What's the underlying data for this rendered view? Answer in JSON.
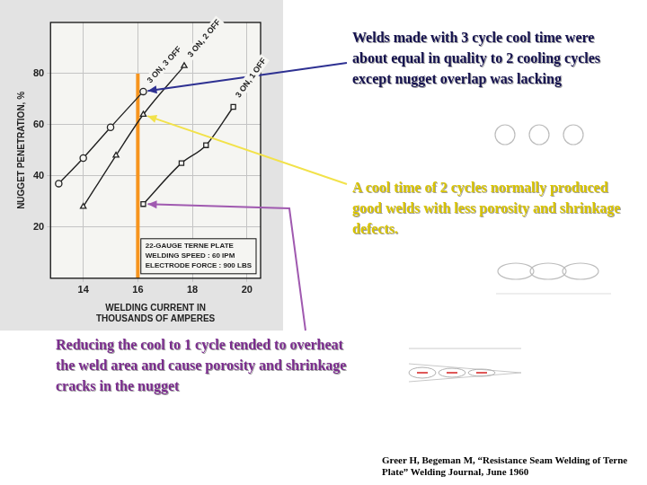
{
  "chart_data": {
    "type": "line",
    "xlabel": [
      "WELDING CURRENT IN",
      "THOUSANDS OF AMPERES"
    ],
    "ylabel": "NUGGET PENETRATION, %",
    "xlim": [
      12.8,
      20.5
    ],
    "xticks": [
      14,
      16,
      18,
      20
    ],
    "ylim": [
      0,
      100
    ],
    "yticks": [
      20,
      40,
      60,
      80
    ],
    "grid": true,
    "series": [
      {
        "name": "3 ON, 3 OFF",
        "color": "#222222",
        "marker": "circle",
        "x": [
          13.1,
          14,
          15,
          16.2
        ],
        "values": [
          37,
          47,
          59,
          73
        ]
      },
      {
        "name": "3 ON, 2 OFF",
        "color": "#222222",
        "marker": "triangle",
        "x": [
          14,
          15.2,
          16.2,
          17.7
        ],
        "values": [
          28,
          48,
          64,
          83
        ]
      },
      {
        "name": "3 ON, 1 OFF",
        "color": "#222222",
        "marker": "square",
        "x": [
          16.2,
          17.6,
          18.5,
          19.5
        ],
        "values": [
          29,
          45,
          52,
          67
        ]
      }
    ],
    "info_box": [
      "22-GAUGE TERNE PLATE",
      "WELDING SPEED : 60 IPM",
      "ELECTRODE FORCE : 900 LBS"
    ],
    "vertical_line": {
      "x": 16,
      "y": [
        0,
        80
      ],
      "color": "#f7941d"
    },
    "annotations": [
      {
        "text": "Welds made with 3 cycle cool time were about equal in quality to 2 cooling cycles except nugget overlap was lacking",
        "color": "#15124f",
        "arrow_color": "#2e3192",
        "target": {
          "x": 16.2,
          "y": 73
        }
      },
      {
        "text": "A cool time of 2 cycles normally produced good welds with less porosity and shrinkage defects.",
        "color": "#d9c400",
        "arrow_color": "#f2e24a",
        "target": {
          "x": 16.2,
          "y": 64
        }
      },
      {
        "text": "Reducing the cool to 1 cycle tended to overheat the weld area and cause porosity and shrinkage cracks in the nugget",
        "color": "#7b2d8e",
        "arrow_color": "#a05ab0",
        "target": {
          "x": 16.2,
          "y": 29
        }
      }
    ]
  },
  "source": "Greer H, Begeman M, “Resistance Seam Welding of Terne Plate” Welding Journal, June 1960"
}
